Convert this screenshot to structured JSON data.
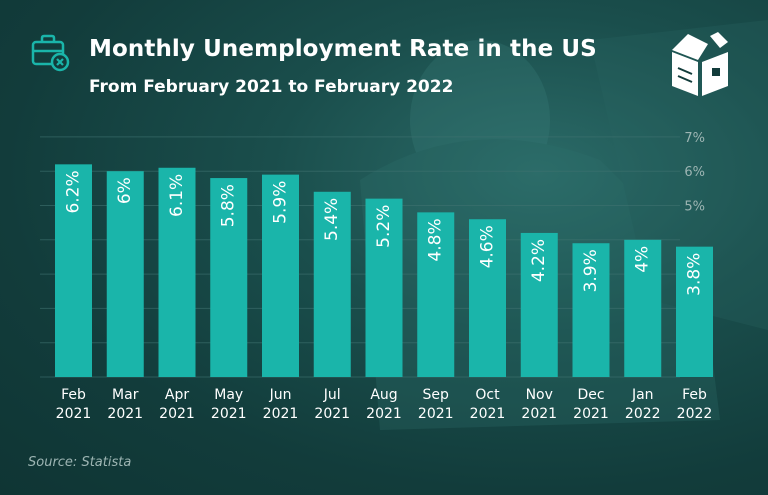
{
  "title": "Monthly Unemployment Rate in the US",
  "subtitle": "From February 2021 to February 2022",
  "source": "Source: Statista",
  "icons": {
    "header": "briefcase-clock-icon",
    "logo": "book-box-logo-icon"
  },
  "colors": {
    "bar": "#1ab5aa",
    "bar_label": "#ffffff",
    "text": "#ffffff",
    "grid": "#3f7270",
    "ytick": "#9db5b3"
  },
  "chart_data": {
    "type": "bar",
    "categories": [
      [
        "Feb",
        "2021"
      ],
      [
        "Mar",
        "2021"
      ],
      [
        "Apr",
        "2021"
      ],
      [
        "May",
        "2021"
      ],
      [
        "Jun",
        "2021"
      ],
      [
        "Jul",
        "2021"
      ],
      [
        "Aug",
        "2021"
      ],
      [
        "Sep",
        "2021"
      ],
      [
        "Oct",
        "2021"
      ],
      [
        "Nov",
        "2021"
      ],
      [
        "Dec",
        "2021"
      ],
      [
        "Jan",
        "2022"
      ],
      [
        "Feb",
        "2022"
      ]
    ],
    "values": [
      6.2,
      6,
      6.1,
      5.8,
      5.9,
      5.4,
      5.2,
      4.8,
      4.6,
      4.2,
      3.9,
      4,
      3.8
    ],
    "data_labels": [
      "6.2%",
      "6%",
      "6.1%",
      "5.8%",
      "5.9%",
      "5.4%",
      "5.2%",
      "4.8%",
      "4.6%",
      "4.2%",
      "3.9%",
      "4%",
      "3.8%"
    ],
    "y_ticks": [
      {
        "value": 5,
        "label": "5%"
      },
      {
        "value": 6,
        "label": "6%"
      },
      {
        "value": 7,
        "label": "7%"
      }
    ],
    "ylim": [
      0,
      7
    ],
    "grid": true
  }
}
